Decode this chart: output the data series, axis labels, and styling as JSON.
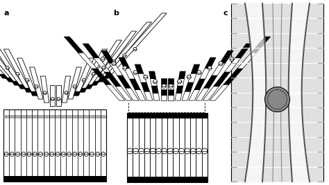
{
  "fig_width": 4.74,
  "fig_height": 2.67,
  "dpi": 100,
  "bg_color": "#ffffff",
  "label_a": "a",
  "label_b": "b",
  "label_c": "c"
}
